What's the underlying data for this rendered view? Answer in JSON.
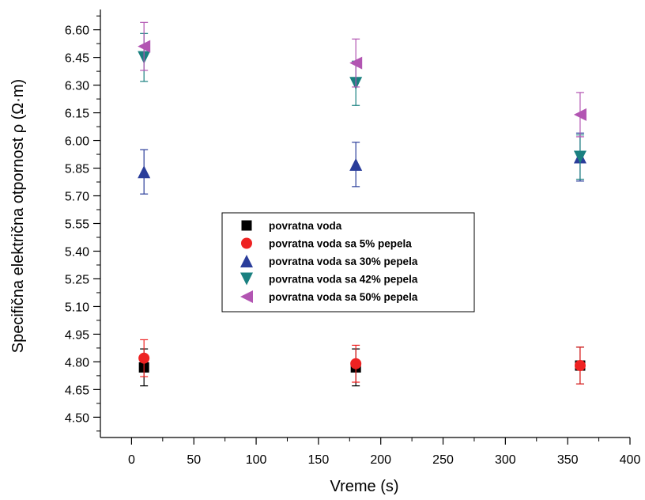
{
  "chart_data": {
    "type": "scatter",
    "xlabel": "Vreme (s)",
    "ylabel": "Specifična električna otpornost ρ (Ω·m)",
    "xlim": [
      -25,
      400
    ],
    "ylim": [
      4.39,
      6.71
    ],
    "xticks": [
      0,
      50,
      100,
      150,
      200,
      250,
      300,
      350,
      400
    ],
    "xtick_labels": [
      "0",
      "50",
      "100",
      "150",
      "200",
      "250",
      "300",
      "350",
      "400"
    ],
    "yticks": [
      4.5,
      4.65,
      4.8,
      4.95,
      5.1,
      5.25,
      5.4,
      5.55,
      5.7,
      5.85,
      6.0,
      6.15,
      6.3,
      6.45,
      6.6
    ],
    "ytick_labels": [
      "4.50",
      "4.65",
      "4.80",
      "4.95",
      "5.10",
      "5.25",
      "5.40",
      "5.55",
      "5.70",
      "5.85",
      "6.00",
      "6.15",
      "6.30",
      "6.45",
      "6.60"
    ],
    "grid": false,
    "legend_position": "center",
    "series": [
      {
        "name": "povratna voda",
        "marker": "square",
        "color": "#000000",
        "x": [
          10,
          180,
          360
        ],
        "y": [
          4.77,
          4.77,
          4.78
        ],
        "err": [
          0.1,
          0.1,
          0.1
        ]
      },
      {
        "name": "povratna voda sa 5% pepela",
        "marker": "circle",
        "color": "#ee2222",
        "x": [
          10,
          180,
          360
        ],
        "y": [
          4.82,
          4.79,
          4.78
        ],
        "err": [
          0.1,
          0.1,
          0.1
        ]
      },
      {
        "name": "povratna voda sa 30% pepela",
        "marker": "triangle-up",
        "color": "#2a3d9a",
        "x": [
          10,
          180,
          360
        ],
        "y": [
          5.83,
          5.87,
          5.91
        ],
        "err": [
          0.12,
          0.12,
          0.13
        ]
      },
      {
        "name": "povratna voda sa 42% pepela",
        "marker": "triangle-down",
        "color": "#1a8080",
        "x": [
          10,
          180,
          360
        ],
        "y": [
          6.45,
          6.31,
          5.91
        ],
        "err": [
          0.13,
          0.12,
          0.12
        ]
      },
      {
        "name": "povratna voda sa 50% pepela",
        "marker": "triangle-left",
        "color": "#b255b2",
        "x": [
          10,
          180,
          360
        ],
        "y": [
          6.51,
          6.42,
          6.14
        ],
        "err": [
          0.13,
          0.13,
          0.12
        ]
      }
    ]
  }
}
